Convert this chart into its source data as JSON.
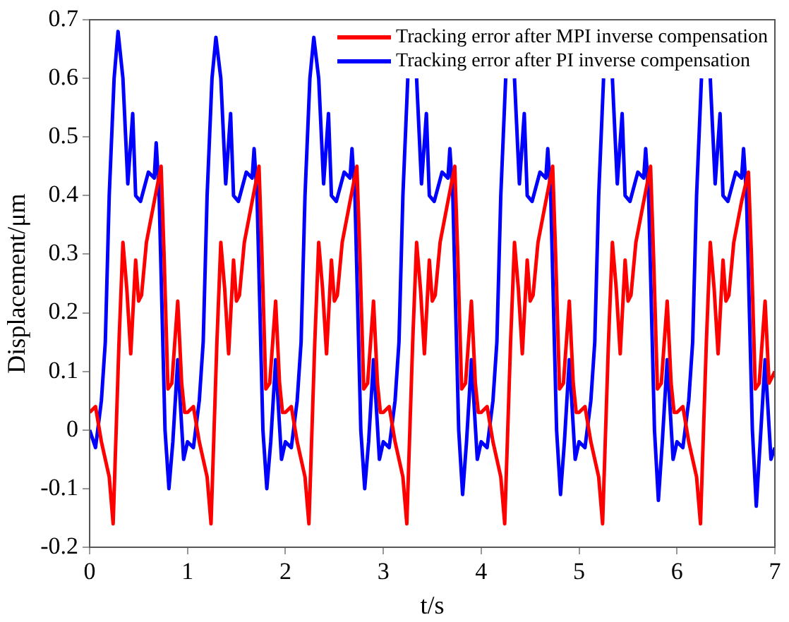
{
  "chart_data": {
    "type": "line",
    "xlabel": "t/s",
    "ylabel": "Displacement/μm",
    "xlim": [
      0,
      7
    ],
    "xticks": [
      0,
      1,
      2,
      3,
      4,
      5,
      6,
      7
    ],
    "ylim": [
      -0.2,
      0.7
    ],
    "yticks": [
      -0.2,
      -0.1,
      0,
      0.1,
      0.2,
      0.3,
      0.4,
      0.5,
      0.6,
      0.7
    ],
    "grid": false,
    "legend": "top right",
    "marker": "none",
    "line_style": "solid",
    "series": [
      {
        "name": "Tracking error after MPI inverse compensation",
        "color": "#ff0000",
        "x": [
          0,
          0.06,
          0.12,
          0.2,
          0.24,
          0.3,
          0.34,
          0.38,
          0.42,
          0.47,
          0.5,
          0.53,
          0.58,
          0.66,
          0.73,
          0.76,
          0.8,
          0.84,
          0.9,
          0.94,
          0.97,
          1,
          1.06,
          1.12,
          1.2,
          1.24,
          1.3,
          1.34,
          1.38,
          1.42,
          1.47,
          1.5,
          1.53,
          1.58,
          1.66,
          1.73,
          1.76,
          1.8,
          1.84,
          1.9,
          1.94,
          1.97,
          2,
          2.06,
          2.12,
          2.2,
          2.24,
          2.3,
          2.34,
          2.38,
          2.42,
          2.47,
          2.5,
          2.53,
          2.58,
          2.66,
          2.73,
          2.76,
          2.8,
          2.84,
          2.9,
          2.94,
          2.97,
          3,
          3.06,
          3.12,
          3.2,
          3.24,
          3.3,
          3.34,
          3.38,
          3.42,
          3.47,
          3.5,
          3.53,
          3.58,
          3.66,
          3.73,
          3.76,
          3.8,
          3.84,
          3.9,
          3.94,
          3.97,
          4,
          4.06,
          4.12,
          4.2,
          4.24,
          4.3,
          4.34,
          4.38,
          4.42,
          4.47,
          4.5,
          4.53,
          4.58,
          4.66,
          4.73,
          4.76,
          4.8,
          4.84,
          4.9,
          4.94,
          4.97,
          5,
          5.06,
          5.12,
          5.2,
          5.24,
          5.3,
          5.34,
          5.38,
          5.42,
          5.47,
          5.5,
          5.53,
          5.58,
          5.66,
          5.73,
          5.76,
          5.8,
          5.84,
          5.9,
          5.94,
          5.97,
          6,
          6.06,
          6.12,
          6.2,
          6.24,
          6.3,
          6.34,
          6.38,
          6.42,
          6.47,
          6.5,
          6.53,
          6.58,
          6.66,
          6.73,
          6.76,
          6.8,
          6.84,
          6.9,
          6.94,
          7
        ],
        "values": [
          0.03,
          0.04,
          -0.02,
          -0.08,
          -0.16,
          0.15,
          0.32,
          0.24,
          0.13,
          0.29,
          0.22,
          0.23,
          0.32,
          0.39,
          0.45,
          0.3,
          0.07,
          0.08,
          0.22,
          0.08,
          0.03,
          0.03,
          0.04,
          -0.02,
          -0.08,
          -0.16,
          0.15,
          0.32,
          0.24,
          0.13,
          0.29,
          0.22,
          0.23,
          0.32,
          0.39,
          0.45,
          0.3,
          0.07,
          0.08,
          0.22,
          0.08,
          0.03,
          0.03,
          0.04,
          -0.02,
          -0.08,
          -0.16,
          0.15,
          0.32,
          0.24,
          0.13,
          0.29,
          0.22,
          0.23,
          0.32,
          0.39,
          0.45,
          0.3,
          0.07,
          0.08,
          0.22,
          0.08,
          0.03,
          0.03,
          0.04,
          -0.02,
          -0.08,
          -0.16,
          0.15,
          0.32,
          0.24,
          0.13,
          0.29,
          0.22,
          0.23,
          0.32,
          0.39,
          0.45,
          0.3,
          0.07,
          0.08,
          0.22,
          0.08,
          0.03,
          0.03,
          0.04,
          -0.02,
          -0.08,
          -0.16,
          0.15,
          0.32,
          0.24,
          0.13,
          0.29,
          0.22,
          0.23,
          0.32,
          0.39,
          0.45,
          0.3,
          0.07,
          0.08,
          0.22,
          0.08,
          0.03,
          0.03,
          0.04,
          -0.02,
          -0.08,
          -0.16,
          0.15,
          0.32,
          0.24,
          0.13,
          0.29,
          0.22,
          0.23,
          0.32,
          0.39,
          0.45,
          0.3,
          0.07,
          0.08,
          0.22,
          0.08,
          0.03,
          0.03,
          0.04,
          -0.02,
          -0.08,
          -0.16,
          0.15,
          0.32,
          0.24,
          0.13,
          0.29,
          0.22,
          0.23,
          0.32,
          0.39,
          0.44,
          0.3,
          0.07,
          0.08,
          0.22,
          0.08,
          0.1
        ]
      },
      {
        "name": "Tracking error after PI inverse compensation",
        "color": "#0000ff",
        "x": [
          0,
          0.06,
          0.12,
          0.16,
          0.2,
          0.25,
          0.29,
          0.34,
          0.39,
          0.44,
          0.47,
          0.52,
          0.6,
          0.66,
          0.68,
          0.71,
          0.77,
          0.81,
          0.85,
          0.9,
          0.96,
          1,
          1.06,
          1.12,
          1.16,
          1.2,
          1.25,
          1.29,
          1.34,
          1.39,
          1.44,
          1.47,
          1.52,
          1.6,
          1.66,
          1.68,
          1.71,
          1.77,
          1.81,
          1.85,
          1.9,
          1.96,
          2,
          2.06,
          2.12,
          2.16,
          2.2,
          2.25,
          2.29,
          2.34,
          2.39,
          2.44,
          2.47,
          2.52,
          2.6,
          2.66,
          2.68,
          2.71,
          2.77,
          2.81,
          2.85,
          2.9,
          2.96,
          3,
          3.06,
          3.12,
          3.16,
          3.2,
          3.25,
          3.29,
          3.34,
          3.39,
          3.44,
          3.47,
          3.52,
          3.6,
          3.66,
          3.68,
          3.71,
          3.77,
          3.81,
          3.85,
          3.9,
          3.96,
          4,
          4.06,
          4.12,
          4.16,
          4.2,
          4.25,
          4.29,
          4.34,
          4.39,
          4.44,
          4.47,
          4.52,
          4.6,
          4.66,
          4.68,
          4.71,
          4.77,
          4.81,
          4.85,
          4.9,
          4.96,
          5,
          5.06,
          5.12,
          5.16,
          5.2,
          5.25,
          5.29,
          5.34,
          5.39,
          5.44,
          5.47,
          5.52,
          5.6,
          5.66,
          5.68,
          5.71,
          5.77,
          5.81,
          5.85,
          5.9,
          5.96,
          6,
          6.06,
          6.12,
          6.16,
          6.2,
          6.25,
          6.29,
          6.34,
          6.39,
          6.44,
          6.47,
          6.52,
          6.6,
          6.66,
          6.68,
          6.71,
          6.77,
          6.81,
          6.85,
          6.9,
          6.96,
          7
        ],
        "values": [
          0,
          -0.03,
          0.05,
          0.15,
          0.4,
          0.6,
          0.68,
          0.6,
          0.42,
          0.54,
          0.4,
          0.39,
          0.44,
          0.43,
          0.49,
          0.4,
          0,
          -0.1,
          -0.02,
          0.12,
          -0.05,
          -0.02,
          -0.03,
          0.05,
          0.15,
          0.4,
          0.6,
          0.67,
          0.6,
          0.42,
          0.54,
          0.4,
          0.39,
          0.44,
          0.43,
          0.48,
          0.4,
          0,
          -0.1,
          -0.02,
          0.12,
          -0.05,
          -0.02,
          -0.03,
          0.05,
          0.15,
          0.4,
          0.6,
          0.67,
          0.6,
          0.42,
          0.54,
          0.4,
          0.39,
          0.44,
          0.43,
          0.48,
          0.4,
          0,
          -0.1,
          -0.02,
          0.12,
          -0.05,
          -0.02,
          -0.03,
          0.05,
          0.15,
          0.4,
          0.6,
          null,
          0.6,
          0.42,
          0.54,
          0.4,
          0.39,
          0.44,
          0.43,
          0.48,
          0.4,
          0,
          -0.11,
          -0.02,
          0.12,
          -0.05,
          -0.02,
          -0.03,
          0.05,
          0.15,
          0.4,
          0.6,
          null,
          0.6,
          0.42,
          0.54,
          0.4,
          0.39,
          0.44,
          0.43,
          0.48,
          0.4,
          0,
          -0.11,
          -0.02,
          0.12,
          -0.05,
          -0.02,
          -0.03,
          0.05,
          0.15,
          0.4,
          0.6,
          null,
          0.6,
          0.42,
          0.54,
          0.4,
          0.39,
          0.44,
          0.43,
          0.48,
          0.4,
          0,
          -0.12,
          -0.02,
          0.12,
          -0.05,
          -0.02,
          -0.03,
          0.05,
          0.15,
          0.4,
          0.6,
          null,
          0.6,
          0.42,
          0.54,
          0.4,
          0.39,
          0.44,
          0.43,
          0.48,
          0.4,
          0,
          -0.13,
          -0.02,
          0.12,
          -0.05,
          -0.03
        ]
      }
    ]
  }
}
